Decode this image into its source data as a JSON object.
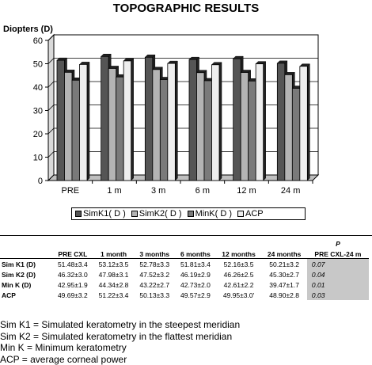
{
  "chart_data": {
    "type": "bar",
    "title": "TOPOGRAPHIC RESULTS",
    "ylabel": "Diopters (D)",
    "xlabel": "",
    "ylim": [
      0,
      60
    ],
    "yticks": [
      "0",
      "10",
      "20",
      "30",
      "40",
      "50",
      "60"
    ],
    "grid": true,
    "legend_position": "bottom",
    "categories": [
      "PRE",
      "1 m",
      "3 m",
      "6 m",
      "12 m",
      "24 m"
    ],
    "series": [
      {
        "name": "SimK1( D )",
        "values": [
          51.48,
          53.12,
          52.78,
          51.81,
          52.16,
          50.21
        ],
        "color": "#555555"
      },
      {
        "name": "SimK2( D )",
        "values": [
          46.32,
          47.98,
          47.52,
          46.19,
          46.26,
          45.3
        ],
        "color": "#b4b4b4"
      },
      {
        "name": "MinK( D )",
        "values": [
          42.95,
          44.34,
          43.22,
          42.73,
          42.61,
          39.47
        ],
        "color": "#7a7a7a"
      },
      {
        "name": "ACP",
        "values": [
          49.69,
          51.22,
          50.13,
          49.57,
          49.95,
          48.9
        ],
        "color": "#eeeeee"
      }
    ]
  },
  "table": {
    "headers": [
      "PRE CXL",
      "1 month",
      "3 months",
      "6 months",
      "12 months",
      "24 months"
    ],
    "p_header_line1": "P",
    "p_header_line2": "PRE CXL-24 m",
    "rows": [
      {
        "label": "Sim K1 (D)",
        "values": [
          "51.48±3.4",
          "53.12±3.5",
          "52.78±3.3",
          "51.81±3.4",
          "52.16±3.5",
          "50.21±3.2"
        ],
        "p": "0.07"
      },
      {
        "label": "Sim K2 (D)",
        "values": [
          "46.32±3.0",
          "47.98±3.1",
          "47.52±3.2",
          "46.19±2.9",
          "46.26±2.5",
          "45.30±2.7"
        ],
        "p": "0.04"
      },
      {
        "label": "Min K (D)",
        "values": [
          "42.95±1.9",
          "44.34±2.8",
          "43.22±2.7",
          "42.73±2.0",
          "42.61±2.2",
          "39.47±1.7"
        ],
        "p": "0.01"
      },
      {
        "label": "ACP",
        "values": [
          "49.69±3.2",
          "51.22±3.4",
          "50.13±3.3",
          "49.57±2.9",
          "49.95±3.0'",
          "48.90±2.8"
        ],
        "p": "0.03"
      }
    ]
  },
  "footnotes": [
    "Sim K1 = Simulated keratometry in the steepest meridian",
    "Sim K2 = Simulated keratometry in the flattest meridian",
    "Min K = Minimum keratometry",
    "ACP = average corneal power"
  ]
}
